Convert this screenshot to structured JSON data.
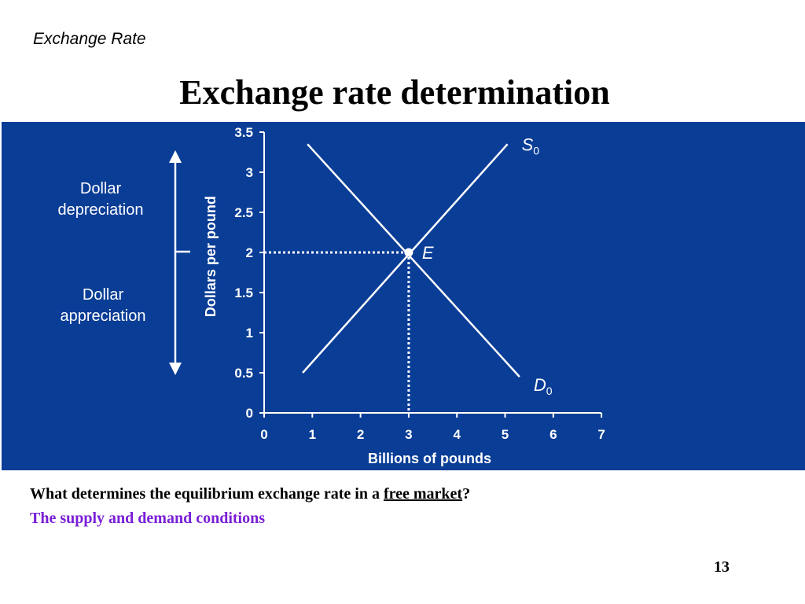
{
  "header": {
    "section": "Exchange Rate"
  },
  "title": "Exchange rate determination",
  "colors": {
    "panel_bg": "#0a3d96",
    "foreground": "#ffffff",
    "answer_text": "#7a1fd6"
  },
  "chart_data": {
    "type": "line",
    "xlabel": "Billions of pounds",
    "ylabel": "Dollars per pound",
    "xlim": [
      0,
      7
    ],
    "ylim": [
      0,
      3.5
    ],
    "x_ticks": [
      "0",
      "1",
      "2",
      "3",
      "4",
      "5",
      "6",
      "7"
    ],
    "y_ticks": [
      "0",
      "0.5",
      "1",
      "1.5",
      "2",
      "2.5",
      "3",
      "3.5"
    ],
    "grid": false,
    "series": [
      {
        "name": "S",
        "subscript": "0",
        "points": [
          [
            0.8,
            0.5
          ],
          [
            5.05,
            3.35
          ]
        ]
      },
      {
        "name": "D",
        "subscript": "0",
        "points": [
          [
            0.9,
            3.35
          ],
          [
            5.3,
            0.45
          ]
        ]
      }
    ],
    "equilibrium": {
      "label": "E",
      "x": 3,
      "y": 2
    },
    "annotations": {
      "upper": [
        "Dollar",
        "depreciation"
      ],
      "lower": [
        "Dollar",
        "appreciation"
      ]
    }
  },
  "question": {
    "prefix": "What determines the equilibrium exchange rate in a ",
    "link": "free market",
    "suffix": "?"
  },
  "answer": "The supply and demand conditions",
  "page_number": "13"
}
